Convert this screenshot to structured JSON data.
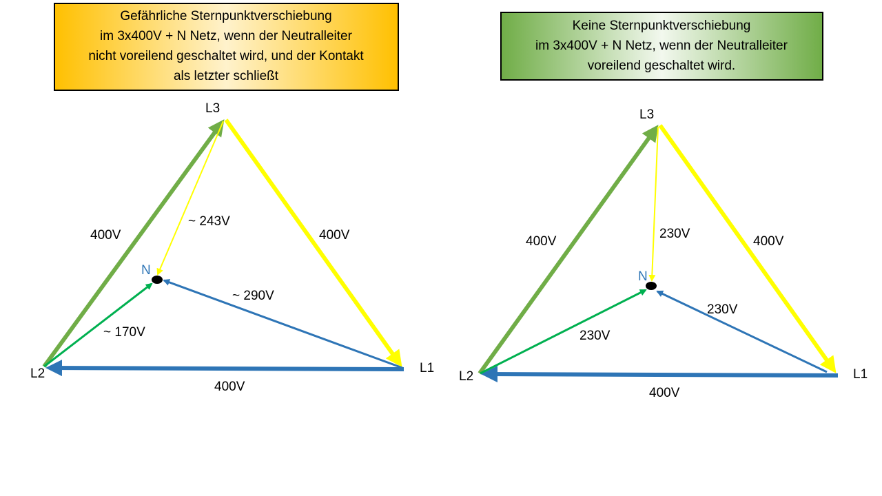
{
  "panels": [
    {
      "title": [
        "Gefährliche Sternpunktverschiebung",
        "im  3x400V + N  Netz, wenn der Neutralleiter",
        "nicht voreilend geschaltet wird, und der Kontakt",
        "als letzter schließt"
      ],
      "vertices": {
        "L1": "L1",
        "L2": "L2",
        "L3": "L3",
        "N": "N"
      },
      "edges": {
        "L2_L3": "400V",
        "L3_L1": "400V",
        "L1_L2": "400V",
        "L3_N": "~ 243V",
        "L1_N": "~ 290V",
        "L2_N": "~ 170V"
      }
    },
    {
      "title": [
        "Keine Sternpunktverschiebung",
        "im  3x400V + N  Netz, wenn der Neutralleiter",
        "voreilend geschaltet wird."
      ],
      "vertices": {
        "L1": "L1",
        "L2": "L2",
        "L3": "L3",
        "N": "N"
      },
      "edges": {
        "L2_L3": "400V",
        "L3_L1": "400V",
        "L1_L2": "400V",
        "L3_N": "230V",
        "L1_N": "230V",
        "L2_N": "230V"
      }
    }
  ]
}
